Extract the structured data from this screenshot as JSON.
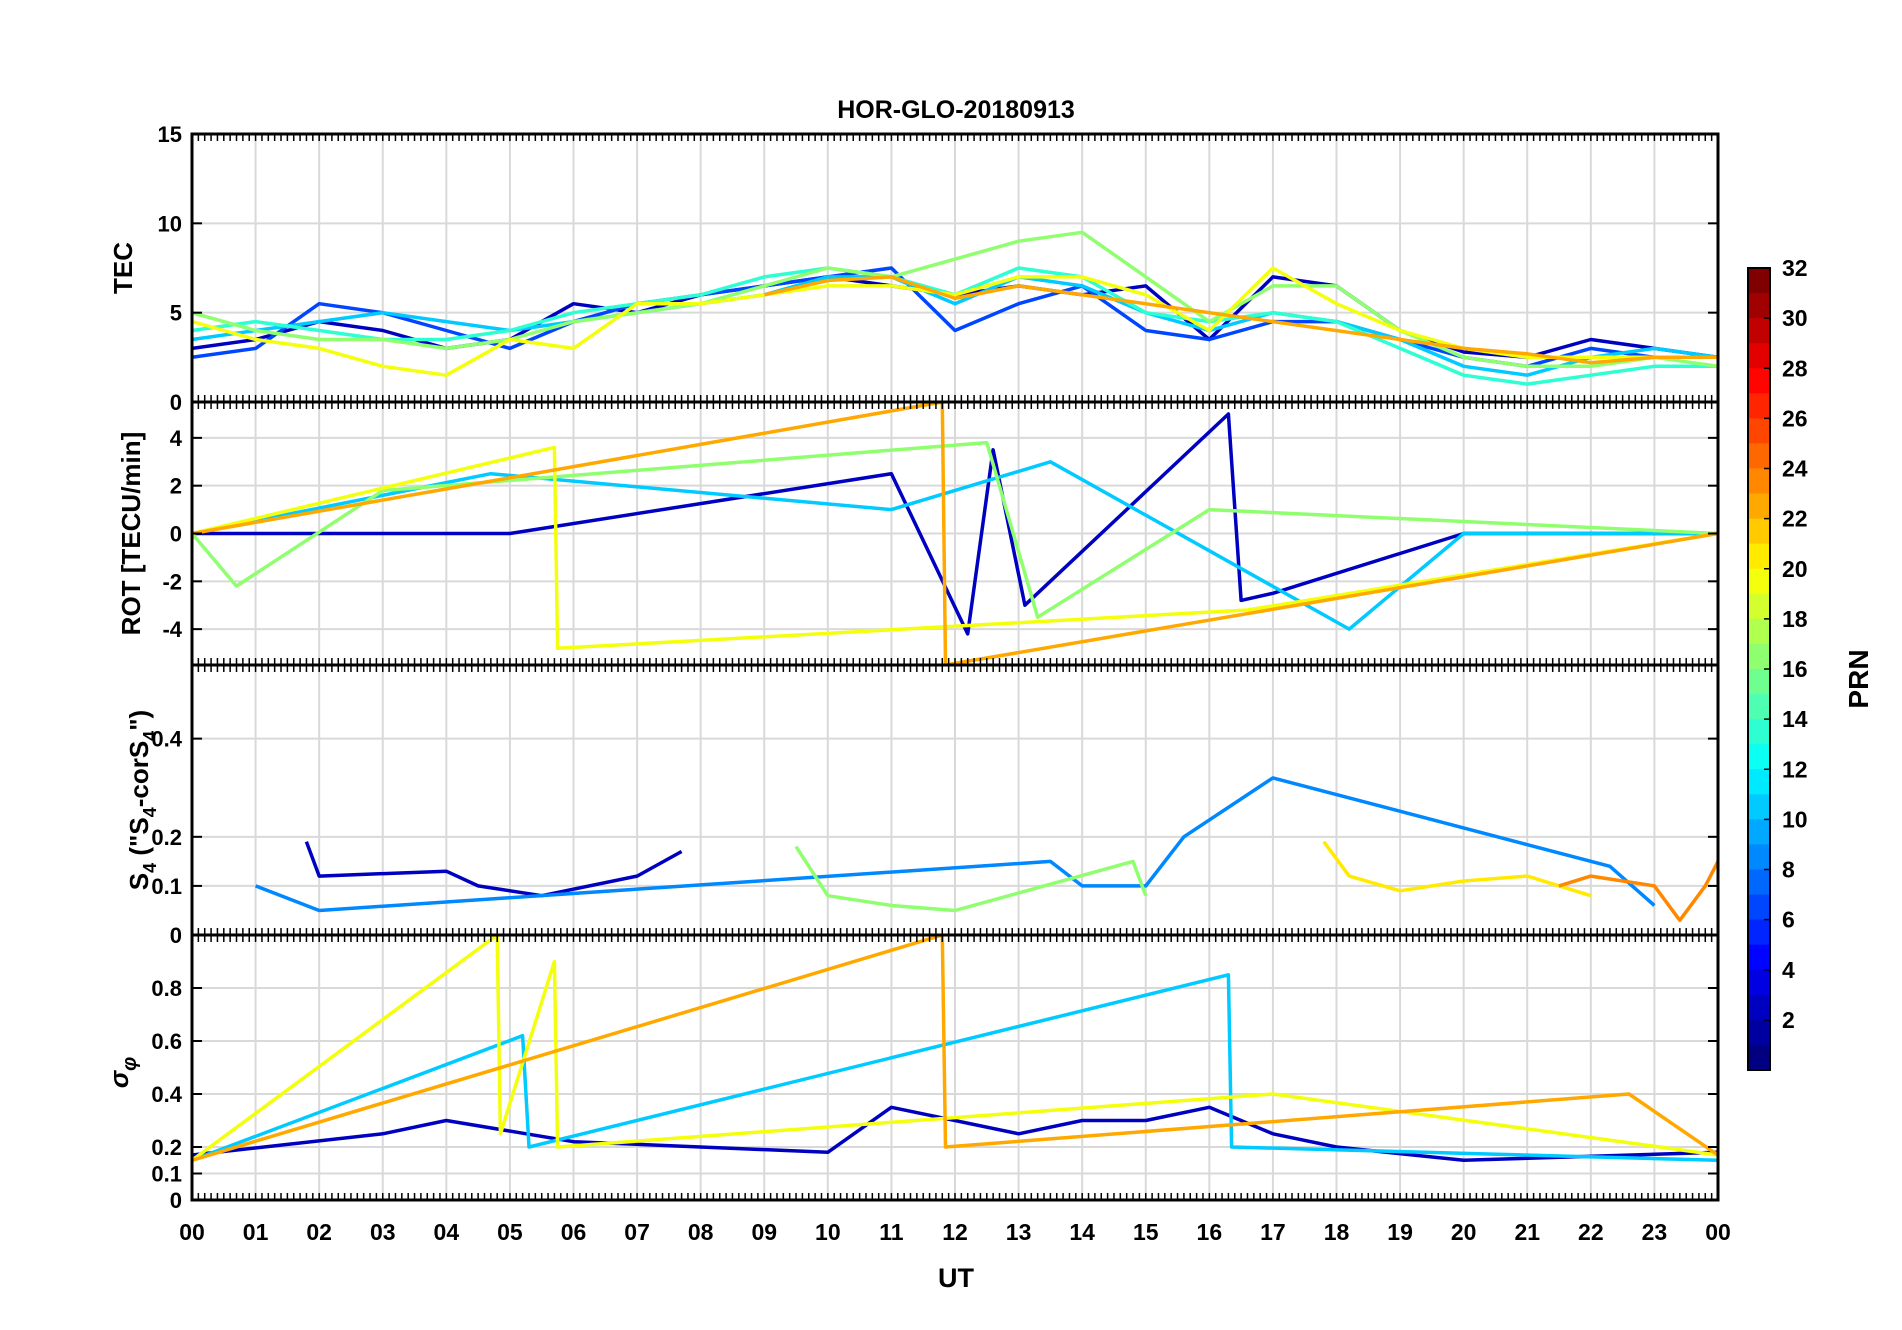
{
  "chart_data": {
    "type": "line",
    "title": "HOR-GLO-20180913",
    "xlabel": "UT",
    "x_ticks": [
      "00",
      "01",
      "02",
      "03",
      "04",
      "05",
      "06",
      "07",
      "08",
      "09",
      "10",
      "11",
      "12",
      "13",
      "14",
      "15",
      "16",
      "17",
      "18",
      "19",
      "20",
      "21",
      "22",
      "23",
      "00"
    ],
    "x_range_hours": [
      0,
      24
    ],
    "grid": true,
    "colorbar": {
      "label": "PRN",
      "range": [
        1,
        32
      ],
      "ticks": [
        2,
        4,
        6,
        8,
        10,
        12,
        14,
        16,
        18,
        20,
        22,
        24,
        26,
        28,
        30,
        32
      ],
      "colormap": "jet",
      "placement": "right"
    },
    "panels": [
      {
        "id": "tec",
        "ylabel": "TEC",
        "ylim": [
          0,
          15
        ],
        "yticks": [
          0,
          5,
          10,
          15
        ],
        "series": [
          {
            "prn": 3,
            "x": [
              0,
              1,
              2,
              3,
              4,
              5,
              6,
              7,
              8,
              9,
              10,
              11,
              12,
              13,
              14,
              15,
              16,
              17,
              18,
              19,
              20,
              21,
              22,
              23,
              24
            ],
            "y": [
              3,
              3.5,
              4.5,
              4,
              3,
              3.5,
              5.5,
              5,
              6,
              6.5,
              7,
              6.5,
              6,
              6.5,
              6,
              6.5,
              3.5,
              7,
              6.5,
              4,
              2.8,
              2.5,
              3.5,
              3,
              2.5
            ]
          },
          {
            "prn": 7,
            "x": [
              0,
              1,
              2,
              3,
              4,
              5,
              6,
              7,
              8,
              9,
              10,
              11,
              12,
              13,
              14,
              15,
              16,
              17,
              18,
              19,
              20,
              21,
              22,
              23,
              24
            ],
            "y": [
              2.5,
              3,
              5.5,
              5,
              4,
              3,
              4.5,
              5.5,
              6,
              6.5,
              7,
              7.5,
              4,
              5.5,
              6.5,
              4,
              3.5,
              4.5,
              4.5,
              3.5,
              2.5,
              2,
              3,
              2.5,
              2.5
            ]
          },
          {
            "prn": 11,
            "x": [
              0,
              1,
              2,
              3,
              4,
              5,
              6,
              7,
              8,
              9,
              10,
              11,
              12,
              13,
              14,
              15,
              16,
              17,
              18,
              19,
              20,
              21,
              22,
              23,
              24
            ],
            "y": [
              3.5,
              4,
              4.5,
              5,
              4.5,
              4,
              4.5,
              5,
              5.5,
              6,
              7,
              7,
              5.5,
              7,
              6.5,
              5,
              4,
              5,
              4.5,
              3.5,
              2,
              1.5,
              2.5,
              3,
              2.5
            ]
          },
          {
            "prn": 14,
            "x": [
              0,
              1,
              2,
              3,
              4,
              5,
              6,
              7,
              8,
              9,
              10,
              11,
              12,
              13,
              14,
              15,
              16,
              17,
              18,
              19,
              20,
              21,
              22,
              23,
              24
            ],
            "y": [
              4,
              4.5,
              4,
              3.5,
              3.5,
              4,
              5,
              5.5,
              6,
              7,
              7.5,
              7,
              6,
              7.5,
              7,
              5,
              4.5,
              5,
              4.5,
              3,
              1.5,
              1,
              1.5,
              2,
              2
            ]
          },
          {
            "prn": 17,
            "x": [
              0,
              1,
              2,
              3,
              4,
              5,
              6,
              7,
              8,
              9,
              10,
              11,
              12,
              13,
              14,
              15,
              16,
              17,
              18,
              19,
              20,
              21,
              22,
              23,
              24
            ],
            "y": [
              5,
              4,
              3.5,
              3.5,
              3,
              3.5,
              4.5,
              5,
              5.5,
              6.5,
              7.5,
              7,
              8,
              9,
              9.5,
              7,
              4.5,
              6.5,
              6.5,
              4,
              2.5,
              2,
              2,
              2.5,
              2
            ]
          },
          {
            "prn": 20,
            "x": [
              0,
              1,
              2,
              3,
              4,
              5,
              6,
              7,
              8,
              9,
              10,
              11,
              12,
              13,
              14,
              15,
              16,
              17,
              18,
              19,
              20,
              21,
              22,
              23,
              24
            ],
            "y": [
              4.5,
              3.5,
              3,
              2,
              1.5,
              3.5,
              3,
              5.5,
              5.5,
              6,
              6.5,
              6.5,
              6,
              7,
              7,
              6,
              4,
              7.5,
              5.5,
              4,
              3,
              2.5,
              2.5,
              2.5,
              2.5
            ]
          },
          {
            "prn": 23,
            "x": [
              9,
              10,
              11,
              12,
              13,
              19,
              20,
              21,
              22,
              23,
              24
            ],
            "y": [
              6,
              6.8,
              7,
              5.8,
              6.5,
              3.5,
              3,
              2.7,
              2.2,
              2.5,
              2.5
            ]
          }
        ]
      },
      {
        "id": "rot",
        "ylabel": "ROT [TECU/min]",
        "ylim": [
          -5.5,
          5.5
        ],
        "yticks": [
          -4,
          -2,
          0,
          2,
          4
        ],
        "series": [
          {
            "prn": 3,
            "x": [
              0,
              5,
              11,
              12.2,
              12.6,
              13.1,
              16.3,
              16.5,
              17,
              20,
              24
            ],
            "y": [
              0,
              0,
              2.5,
              -4.2,
              3.5,
              -3,
              5,
              -2.8,
              -2.5,
              0,
              0
            ]
          },
          {
            "prn": 11,
            "x": [
              0,
              4.7,
              11,
              13.5,
              18.2,
              20,
              24
            ],
            "y": [
              0,
              2.5,
              1,
              3,
              -4,
              0,
              0
            ]
          },
          {
            "prn": 17,
            "x": [
              0,
              0.7,
              3,
              12.5,
              13.3,
              16,
              24
            ],
            "y": [
              0,
              -2.2,
              1.8,
              3.8,
              -3.5,
              1,
              0
            ]
          },
          {
            "prn": 20,
            "x": [
              0,
              5.7,
              5.75,
              16.6,
              24
            ],
            "y": [
              0,
              3.6,
              -4.8,
              -3.2,
              0
            ]
          },
          {
            "prn": 23,
            "x": [
              0,
              11.8,
              11.85,
              24
            ],
            "y": [
              0,
              5.5,
              -5.5,
              0
            ]
          }
        ]
      },
      {
        "id": "s4",
        "ylabel": "S4 (\"S4-corS4\")",
        "ylabel_main": "S",
        "ylabel_sub": "4",
        "ylabel_paren_open": " (\"S",
        "ylabel_mid": "-corS",
        "ylabel_close": "\")",
        "ylim": [
          0,
          0.55
        ],
        "yticks": [
          0,
          0.1,
          0.2,
          0.4
        ],
        "series": [
          {
            "prn": 3,
            "x": [
              1.8,
              2,
              4,
              4.5,
              5.5,
              7,
              7.7
            ],
            "y": [
              0.19,
              0.12,
              0.13,
              0.1,
              0.08,
              0.12,
              0.17
            ]
          },
          {
            "prn": 9,
            "x": [
              1,
              2,
              13.5,
              14,
              15,
              15.6,
              17,
              22.3,
              23
            ],
            "y": [
              0.1,
              0.05,
              0.15,
              0.1,
              0.1,
              0.2,
              0.32,
              0.14,
              0.06
            ]
          },
          {
            "prn": 17,
            "x": [
              9.5,
              9.8,
              10,
              11,
              12,
              14.8,
              15
            ],
            "y": [
              0.18,
              0.12,
              0.08,
              0.06,
              0.05,
              0.15,
              0.08
            ]
          },
          {
            "prn": 21,
            "x": [
              17.8,
              18.2,
              19,
              20,
              21,
              22
            ],
            "y": [
              0.19,
              0.12,
              0.09,
              0.11,
              0.12,
              0.08
            ]
          },
          {
            "prn": 24,
            "x": [
              21.5,
              22,
              23,
              23.4,
              23.8,
              24
            ],
            "y": [
              0.1,
              0.12,
              0.1,
              0.03,
              0.1,
              0.15
            ]
          }
        ]
      },
      {
        "id": "sigma",
        "ylabel": "σφ",
        "ylabel_main": "σ",
        "ylabel_sub": "φ",
        "ylim": [
          0,
          1
        ],
        "yticks": [
          0,
          0.1,
          0.2,
          0.4,
          0.6,
          0.8
        ],
        "series": [
          {
            "prn": 3,
            "x": [
              0,
              3,
              4,
              6,
              10,
              11,
              13,
              14,
              15,
              16,
              17,
              18,
              20,
              24
            ],
            "y": [
              0.17,
              0.25,
              0.3,
              0.22,
              0.18,
              0.35,
              0.25,
              0.3,
              0.3,
              0.35,
              0.25,
              0.2,
              0.15,
              0.18
            ]
          },
          {
            "prn": 11,
            "x": [
              0,
              5.2,
              5.3,
              16.3,
              16.35,
              24
            ],
            "y": [
              0.15,
              0.62,
              0.2,
              0.85,
              0.2,
              0.15
            ]
          },
          {
            "prn": 20,
            "x": [
              0,
              4.8,
              4.85,
              5.7,
              5.75,
              17,
              24
            ],
            "y": [
              0.15,
              1,
              0.25,
              0.9,
              0.2,
              0.4,
              0.17
            ]
          },
          {
            "prn": 23,
            "x": [
              0,
              11.8,
              11.85,
              22.6,
              24
            ],
            "y": [
              0.15,
              1,
              0.2,
              0.4,
              0.17
            ]
          }
        ]
      }
    ]
  }
}
